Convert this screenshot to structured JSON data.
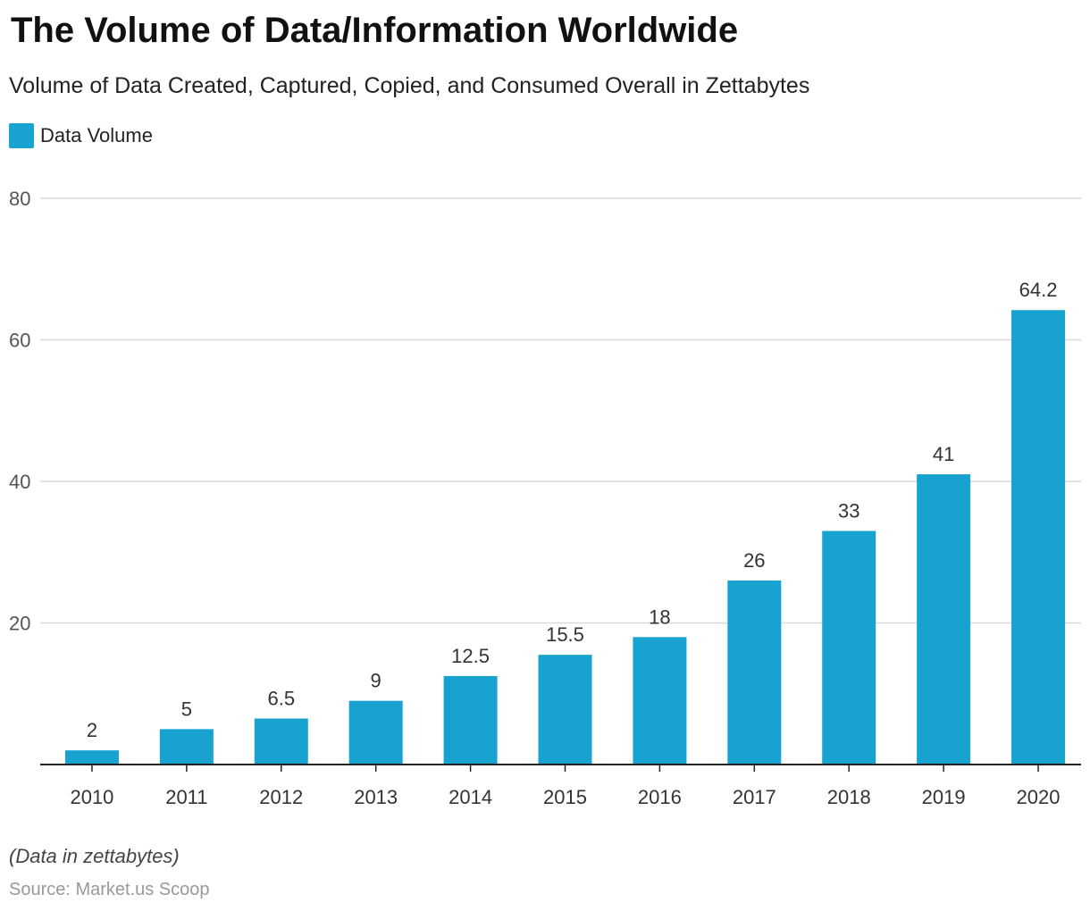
{
  "header": {
    "title": "The Volume of Data/Information Worldwide",
    "subtitle": "Volume of Data Created, Captured, Copied, and Consumed Overall in Zettabytes"
  },
  "footer": {
    "note": "(Data in zettabytes)",
    "source": "Source: Market.us Scoop"
  },
  "colors": {
    "bar": "#18a2cf",
    "grid": "#d9d9d9",
    "axis": "#222222",
    "tick_text": "#555555",
    "label_text": "#333333"
  },
  "chart_data": {
    "type": "bar",
    "title": "The Volume of Data/Information Worldwide",
    "subtitle": "Volume of Data Created, Captured, Copied, and Consumed Overall in Zettabytes",
    "categories": [
      "2010",
      "2011",
      "2012",
      "2013",
      "2014",
      "2015",
      "2016",
      "2017",
      "2018",
      "2019",
      "2020"
    ],
    "series": [
      {
        "name": "Data Volume",
        "values": [
          2,
          5,
          6.5,
          9,
          12.5,
          15.5,
          18,
          26,
          33,
          41,
          64.2
        ]
      }
    ],
    "data_labels": [
      "2",
      "5",
      "6.5",
      "9",
      "12.5",
      "15.5",
      "18",
      "26",
      "33",
      "41",
      "64.2"
    ],
    "ylim": [
      0,
      80
    ],
    "yticks": [
      20,
      40,
      60,
      80
    ],
    "ytick_labels": [
      "20",
      "40",
      "60",
      "80"
    ],
    "xlabel": "",
    "ylabel": "",
    "grid": true,
    "legend": "top-left"
  }
}
